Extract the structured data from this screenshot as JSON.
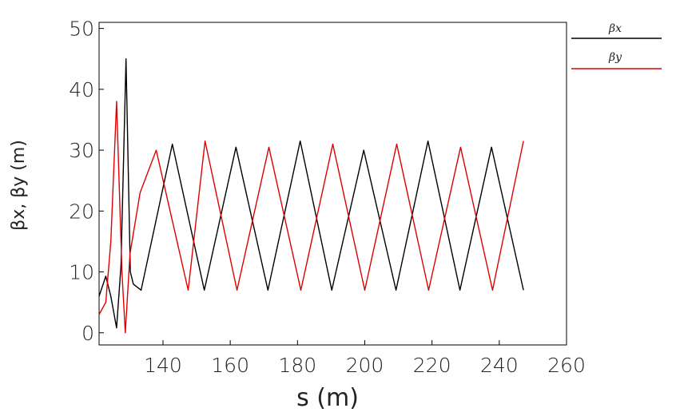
{
  "chart_data": {
    "type": "line",
    "title": "",
    "xlabel": "s  (m)",
    "ylabel": "βx, βy (m)",
    "xlim": [
      121,
      260
    ],
    "ylim": [
      -2,
      51
    ],
    "xticks": [
      "140",
      "160",
      "180",
      "200",
      "220",
      "240",
      "260"
    ],
    "yticks": [
      "0",
      "10",
      "20",
      "30",
      "40",
      "50"
    ],
    "grid": false,
    "legend_position": "right, outside plot",
    "series": [
      {
        "name": "βx",
        "color": "#000000",
        "x": [
          121,
          123,
          124.5,
          126.2,
          127.5,
          129,
          130.3,
          131.2,
          133.5,
          142.8,
          152.3,
          161.7,
          171.2,
          180.8,
          190.2,
          199.7,
          209.3,
          218.8,
          228.3,
          237.7,
          247.2
        ],
        "y": [
          6,
          9.3,
          6,
          0.8,
          11,
          45,
          10,
          8,
          7,
          31,
          7,
          30.5,
          7,
          31.5,
          7,
          30,
          7,
          31.5,
          7,
          30.5,
          7
        ]
      },
      {
        "name": "βy",
        "color": "#e00000",
        "x": [
          121,
          123,
          124.5,
          126.2,
          127.8,
          128.8,
          130.2,
          133.2,
          138,
          147.5,
          152.5,
          162,
          171.5,
          181,
          190.5,
          200,
          209.5,
          219,
          228.5,
          238,
          247.2
        ],
        "y": [
          3,
          5,
          15,
          38,
          10,
          0,
          13,
          23,
          30,
          7,
          31.5,
          7,
          30.5,
          7,
          31,
          7,
          31,
          7,
          30.5,
          7,
          31.5
        ]
      }
    ]
  }
}
